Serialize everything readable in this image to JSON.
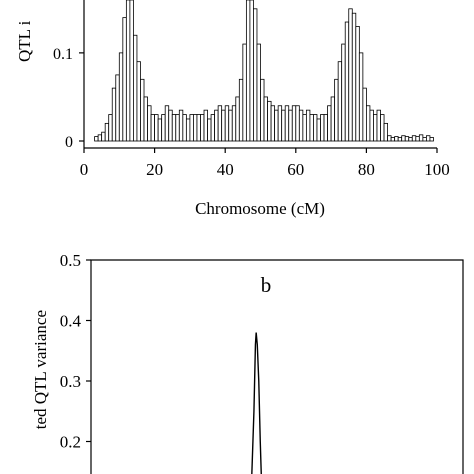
{
  "chart_data": [
    {
      "type": "histogram",
      "y_label": "QTL i",
      "x_label": "Chromosome (cM)",
      "bins": [
        3,
        4,
        5,
        6,
        7,
        8,
        9,
        10,
        11,
        12,
        13,
        14,
        15,
        16,
        17,
        18,
        19,
        20,
        21,
        22,
        23,
        24,
        25,
        26,
        27,
        28,
        29,
        30,
        31,
        32,
        33,
        34,
        35,
        36,
        37,
        38,
        39,
        40,
        41,
        42,
        43,
        44,
        45,
        46,
        47,
        48,
        49,
        50,
        51,
        52,
        53,
        54,
        55,
        56,
        57,
        58,
        59,
        60,
        61,
        62,
        63,
        64,
        65,
        66,
        67,
        68,
        69,
        70,
        71,
        72,
        73,
        74,
        75,
        76,
        77,
        78,
        79,
        80,
        81,
        82,
        83,
        84,
        85,
        86,
        87,
        88,
        89,
        90,
        91,
        92,
        93,
        94,
        95,
        96,
        97,
        98,
        99
      ],
      "values": [
        0.005,
        0.007,
        0.01,
        0.02,
        0.03,
        0.06,
        0.075,
        0.1,
        0.14,
        0.16,
        0.16,
        0.12,
        0.09,
        0.07,
        0.05,
        0.04,
        0.03,
        0.03,
        0.025,
        0.03,
        0.04,
        0.035,
        0.03,
        0.03,
        0.035,
        0.03,
        0.025,
        0.03,
        0.03,
        0.03,
        0.03,
        0.035,
        0.025,
        0.03,
        0.035,
        0.04,
        0.035,
        0.04,
        0.035,
        0.04,
        0.05,
        0.07,
        0.11,
        0.16,
        0.16,
        0.15,
        0.11,
        0.07,
        0.05,
        0.045,
        0.04,
        0.035,
        0.04,
        0.035,
        0.04,
        0.035,
        0.04,
        0.04,
        0.035,
        0.03,
        0.035,
        0.03,
        0.03,
        0.025,
        0.03,
        0.03,
        0.04,
        0.05,
        0.07,
        0.09,
        0.11,
        0.135,
        0.15,
        0.145,
        0.13,
        0.1,
        0.06,
        0.04,
        0.035,
        0.03,
        0.035,
        0.03,
        0.02,
        0.006,
        0.004,
        0.005,
        0.004,
        0.006,
        0.005,
        0.004,
        0.006,
        0.005,
        0.007,
        0.004,
        0.006,
        0.004
      ],
      "color": "#ffffff",
      "xlim": [
        0,
        100
      ],
      "xticks": [
        0,
        20,
        40,
        60,
        80,
        100
      ],
      "ylim": [
        0,
        0.16
      ],
      "yticks": [
        0,
        0.1
      ]
    },
    {
      "type": "line",
      "annotation": "b",
      "y_label": "ted QTL variance",
      "x": [
        43.2,
        43.8,
        44.2,
        44.4,
        44.7,
        45.1,
        45.5,
        45.8
      ],
      "values": [
        0.14,
        0.25,
        0.36,
        0.38,
        0.36,
        0.3,
        0.2,
        0.14
      ],
      "color": "#000000",
      "xlim": [
        0,
        100
      ],
      "ylim": [
        0.1,
        0.5
      ],
      "yticks": [
        0.2,
        0.3,
        0.4,
        0.5
      ]
    }
  ]
}
